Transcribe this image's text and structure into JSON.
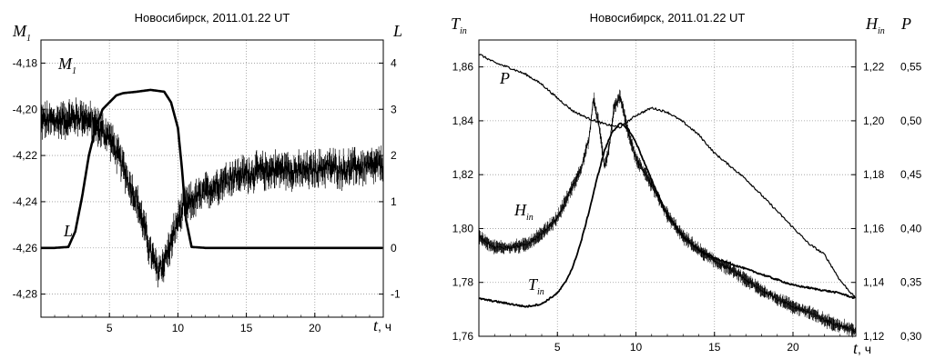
{
  "chart_data": [
    {
      "type": "line",
      "title": "Новосибирск,  2011.01.22 UT",
      "xlabel": "t",
      "xunit": ", ч",
      "ylabel_left": "M",
      "ylabel_left_sub": "1",
      "ylabel_right": "L",
      "xlim": [
        0,
        25
      ],
      "ylim_left": [
        -4.29,
        -4.17
      ],
      "ylim_right": [
        -1.5,
        4.5
      ],
      "grid": true,
      "x_ticks": [
        "5",
        "10",
        "15",
        "20"
      ],
      "x_tick_values": [
        5,
        10,
        15,
        20
      ],
      "y_left_ticks": [
        "-4,18",
        "-4,20",
        "-4,22",
        "-4,24",
        "-4,26",
        "-4,28"
      ],
      "y_left_tick_values": [
        -4.18,
        -4.2,
        -4.22,
        -4.24,
        -4.26,
        -4.28
      ],
      "y_right_ticks": [
        "4",
        "3",
        "2",
        "1",
        "0",
        "-1"
      ],
      "y_right_tick_values": [
        4,
        3,
        2,
        1,
        0,
        -1
      ],
      "series": [
        {
          "name": "M",
          "name_sub": "1",
          "axis": "left",
          "style": "noisy",
          "x": [
            0,
            1,
            2,
            3,
            4,
            5,
            6,
            7,
            7.5,
            8,
            8.5,
            9,
            9.5,
            10,
            10.5,
            11,
            12,
            13,
            14,
            15,
            16,
            17,
            18,
            19,
            20,
            21,
            22,
            23,
            24,
            25
          ],
          "y": [
            -4.205,
            -4.205,
            -4.204,
            -4.203,
            -4.207,
            -4.212,
            -4.225,
            -4.24,
            -4.25,
            -4.262,
            -4.27,
            -4.266,
            -4.258,
            -4.248,
            -4.242,
            -4.24,
            -4.236,
            -4.232,
            -4.229,
            -4.228,
            -4.227,
            -4.226,
            -4.226,
            -4.227,
            -4.226,
            -4.225,
            -4.226,
            -4.225,
            -4.225,
            -4.224
          ]
        },
        {
          "name": "L",
          "axis": "right",
          "style": "bold",
          "x": [
            0,
            1,
            2,
            2.5,
            3,
            3.5,
            4,
            4.5,
            5,
            5.5,
            6,
            7,
            8,
            9,
            9.5,
            10,
            10.3,
            10.6,
            11,
            12,
            25
          ],
          "y": [
            0,
            0,
            0.02,
            0.35,
            1.1,
            2.0,
            2.6,
            3.0,
            3.15,
            3.3,
            3.35,
            3.38,
            3.42,
            3.38,
            3.15,
            2.6,
            1.7,
            0.6,
            0.02,
            0,
            0
          ]
        }
      ]
    },
    {
      "type": "line",
      "title": "Новосибирск,  2011.01.22 UT",
      "xlabel": "t",
      "xunit": ", ч",
      "ylabel_left": "T",
      "ylabel_left_sub": "in",
      "ylabel_right1": "H",
      "ylabel_right1_sub": "in",
      "ylabel_right2": "P",
      "xlim": [
        0,
        24
      ],
      "ylim_left": [
        1.76,
        1.87
      ],
      "ylim_right1": [
        1.12,
        1.23
      ],
      "ylim_right2": [
        0.3,
        0.575
      ],
      "grid": true,
      "x_ticks": [
        "5",
        "10",
        "15",
        "20"
      ],
      "x_tick_values": [
        5,
        10,
        15,
        20
      ],
      "y_left_ticks": [
        "1,86",
        "1,84",
        "1,82",
        "1,80",
        "1,78",
        "1,76"
      ],
      "y_left_tick_values": [
        1.86,
        1.84,
        1.82,
        1.8,
        1.78,
        1.76
      ],
      "y_right1_ticks": [
        "1,22",
        "1,20",
        "1,18",
        "1,16",
        "1,14",
        "1,12"
      ],
      "y_right1_tick_values": [
        1.22,
        1.2,
        1.18,
        1.16,
        1.14,
        1.12
      ],
      "y_right2_ticks": [
        "0,55",
        "0,50",
        "0,45",
        "0,40",
        "0,35",
        "0,30"
      ],
      "y_right2_tick_values": [
        0.55,
        0.5,
        0.45,
        0.4,
        0.35,
        0.3
      ],
      "series": [
        {
          "name": "P",
          "axis": "right2",
          "x": [
            0,
            1,
            2,
            3,
            4,
            5,
            6,
            7,
            8,
            9,
            10,
            11,
            12,
            13,
            14,
            15,
            16,
            17,
            18,
            19,
            20,
            21,
            22,
            23,
            24
          ],
          "y": [
            0.562,
            0.554,
            0.549,
            0.543,
            0.534,
            0.521,
            0.509,
            0.502,
            0.497,
            0.494,
            0.505,
            0.512,
            0.508,
            0.499,
            0.487,
            0.47,
            0.458,
            0.446,
            0.431,
            0.416,
            0.401,
            0.386,
            0.376,
            0.352,
            0.335
          ]
        },
        {
          "name": "H",
          "name_sub": "in",
          "axis": "right1",
          "x": [
            0,
            1,
            2,
            3,
            4,
            5,
            5.5,
            6,
            6.5,
            7,
            7.3,
            7.6,
            8,
            8.3,
            8.6,
            9,
            9.5,
            10,
            11,
            12,
            13,
            14,
            15,
            16,
            17,
            18,
            19,
            20,
            21,
            22,
            23,
            24
          ],
          "y": [
            1.157,
            1.153,
            1.153,
            1.154,
            1.158,
            1.164,
            1.17,
            1.176,
            1.182,
            1.193,
            1.208,
            1.2,
            1.183,
            1.19,
            1.205,
            1.209,
            1.196,
            1.186,
            1.176,
            1.165,
            1.157,
            1.152,
            1.148,
            1.145,
            1.141,
            1.137,
            1.134,
            1.131,
            1.129,
            1.126,
            1.124,
            1.122
          ]
        },
        {
          "name": "T",
          "name_sub": "in",
          "axis": "left",
          "x": [
            0,
            1,
            2,
            3,
            4,
            5,
            5.5,
            6,
            6.5,
            7,
            7.5,
            8,
            8.5,
            9,
            9.5,
            10,
            11,
            12,
            13,
            14,
            15,
            16,
            17,
            18,
            19,
            20,
            21,
            22,
            23,
            24
          ],
          "y": [
            1.774,
            1.773,
            1.772,
            1.771,
            1.772,
            1.776,
            1.78,
            1.786,
            1.795,
            1.806,
            1.818,
            1.829,
            1.836,
            1.839,
            1.837,
            1.832,
            1.818,
            1.805,
            1.797,
            1.792,
            1.789,
            1.787,
            1.785,
            1.783,
            1.781,
            1.779,
            1.778,
            1.777,
            1.776,
            1.774
          ]
        }
      ]
    }
  ]
}
